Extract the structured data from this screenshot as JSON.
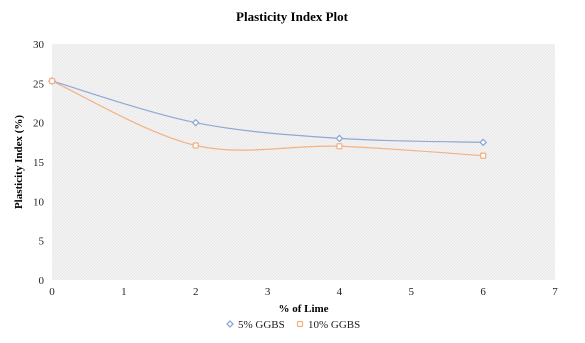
{
  "chart_data": {
    "type": "line",
    "title": "Plasticity Index Plot",
    "xlabel": "% of Lime",
    "ylabel": "Plasticity Index (%)",
    "xlim": [
      0,
      7
    ],
    "ylim": [
      0,
      30
    ],
    "xticks": [
      0,
      1,
      2,
      3,
      4,
      5,
      6,
      7
    ],
    "yticks": [
      0,
      5,
      10,
      15,
      20,
      25,
      30
    ],
    "grid": false,
    "smooth": true,
    "legend_position": "bottom",
    "series": [
      {
        "name": "5% GGBS",
        "color": "#8EA9D4",
        "marker": "diamond",
        "x": [
          0,
          2,
          4,
          6
        ],
        "y": [
          25.3,
          20.0,
          18.0,
          17.5
        ]
      },
      {
        "name": "10% GGBS",
        "color": "#F4B183",
        "marker": "square",
        "x": [
          0,
          2,
          4,
          6
        ],
        "y": [
          25.3,
          17.1,
          17.0,
          15.8
        ]
      }
    ]
  }
}
